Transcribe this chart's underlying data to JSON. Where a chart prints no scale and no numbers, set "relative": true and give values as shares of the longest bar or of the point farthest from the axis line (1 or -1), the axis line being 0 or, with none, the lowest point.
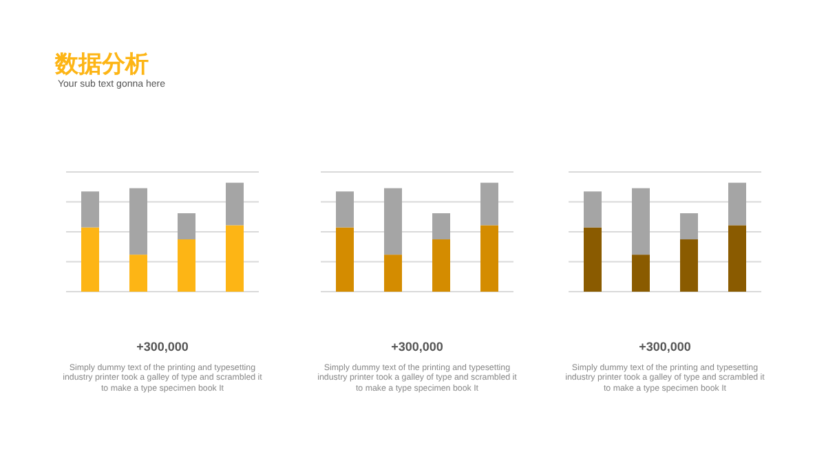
{
  "chart_data": [
    {
      "type": "bar",
      "title": "数据分析",
      "subtitle": "Your sub text gonna here",
      "stacked": true,
      "relative": true,
      "grid": "y",
      "categories": [
        null,
        null,
        null,
        null
      ],
      "series": [
        {
          "color": "#fdb515",
          "values": [
            0.59,
            0.34,
            0.48,
            0.61
          ]
        },
        {
          "color": "#a5a5a5",
          "values": [
            0.33,
            0.61,
            0.24,
            0.39
          ]
        }
      ],
      "annotations": [
        "+300,000",
        "Simply dummy text of the printing and typesetting industry printer took a galley of type and scrambled it to make a type specimen book It"
      ]
    },
    {
      "type": "bar",
      "stacked": true,
      "relative": true,
      "grid": "y",
      "categories": [
        null,
        null,
        null,
        null
      ],
      "series": [
        {
          "color": "#d48c00",
          "values": [
            0.59,
            0.34,
            0.48,
            0.61
          ]
        },
        {
          "color": "#a5a5a5",
          "values": [
            0.33,
            0.61,
            0.24,
            0.39
          ]
        }
      ],
      "annotations": [
        "+300,000",
        "Simply dummy text of the printing and typesetting industry printer took a galley of type and scrambled it to make a type specimen book It"
      ]
    },
    {
      "type": "bar",
      "stacked": true,
      "relative": true,
      "grid": "y",
      "categories": [
        null,
        null,
        null,
        null
      ],
      "series": [
        {
          "color": "#8a5b00",
          "values": [
            0.59,
            0.34,
            0.48,
            0.61
          ]
        },
        {
          "color": "#a5a5a5",
          "values": [
            0.33,
            0.61,
            0.24,
            0.39
          ]
        }
      ],
      "annotations": [
        "+300,000",
        "Simply dummy text of the printing and typesetting industry printer took a galley of type and scrambled it to make a type specimen book It"
      ]
    }
  ]
}
